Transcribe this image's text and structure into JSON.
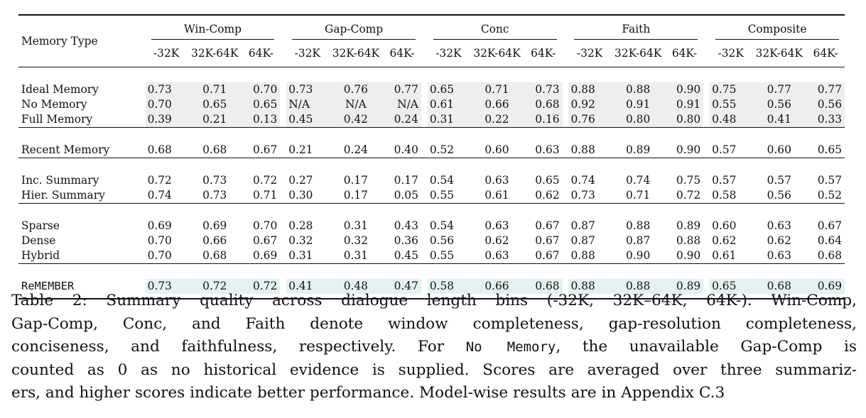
{
  "table": {
    "row_header": "Memory Type",
    "groups": [
      "Win-Comp",
      "Gap-Comp",
      "Conc",
      "Faith",
      "Composite"
    ],
    "bins": [
      "-32K",
      "32K-64K",
      "64K-"
    ],
    "blocks": [
      [
        {
          "name": "Ideal Memory",
          "values": [
            "0.73",
            "0.71",
            "0.70",
            "0.73",
            "0.76",
            "0.77",
            "0.65",
            "0.71",
            "0.73",
            "0.88",
            "0.88",
            "0.90",
            "0.75",
            "0.77",
            "0.77"
          ]
        },
        {
          "name": "No Memory",
          "values": [
            "0.70",
            "0.65",
            "0.65",
            "N/A",
            "N/A",
            "N/A",
            "0.61",
            "0.66",
            "0.68",
            "0.92",
            "0.91",
            "0.91",
            "0.55",
            "0.56",
            "0.56"
          ]
        },
        {
          "name": "Full Memory",
          "values": [
            "0.39",
            "0.21",
            "0.13",
            "0.45",
            "0.42",
            "0.24",
            "0.31",
            "0.22",
            "0.16",
            "0.76",
            "0.80",
            "0.80",
            "0.48",
            "0.41",
            "0.33"
          ]
        }
      ],
      [
        {
          "name": "Recent Memory",
          "values": [
            "0.68",
            "0.68",
            "0.67",
            "0.21",
            "0.24",
            "0.40",
            "0.52",
            "0.60",
            "0.63",
            "0.88",
            "0.89",
            "0.90",
            "0.57",
            "0.60",
            "0.65"
          ]
        }
      ],
      [
        {
          "name": "Inc. Summary",
          "values": [
            "0.72",
            "0.73",
            "0.72",
            "0.27",
            "0.17",
            "0.17",
            "0.54",
            "0.63",
            "0.65",
            "0.74",
            "0.74",
            "0.75",
            "0.57",
            "0.57",
            "0.57"
          ]
        },
        {
          "name": "Hier. Summary",
          "values": [
            "0.74",
            "0.73",
            "0.71",
            "0.30",
            "0.17",
            "0.05",
            "0.55",
            "0.61",
            "0.62",
            "0.73",
            "0.71",
            "0.72",
            "0.58",
            "0.56",
            "0.52"
          ]
        }
      ],
      [
        {
          "name": "Sparse",
          "values": [
            "0.69",
            "0.69",
            "0.70",
            "0.28",
            "0.31",
            "0.43",
            "0.54",
            "0.63",
            "0.67",
            "0.87",
            "0.88",
            "0.89",
            "0.60",
            "0.63",
            "0.67"
          ]
        },
        {
          "name": "Dense",
          "values": [
            "0.70",
            "0.66",
            "0.67",
            "0.32",
            "0.32",
            "0.36",
            "0.56",
            "0.62",
            "0.67",
            "0.87",
            "0.87",
            "0.88",
            "0.62",
            "0.62",
            "0.64"
          ]
        },
        {
          "name": "Hybrid",
          "values": [
            "0.70",
            "0.68",
            "0.69",
            "0.31",
            "0.31",
            "0.45",
            "0.55",
            "0.63",
            "0.67",
            "0.88",
            "0.90",
            "0.90",
            "0.61",
            "0.63",
            "0.68"
          ]
        }
      ],
      [
        {
          "name": "ReMEMBER",
          "values": [
            "0.73",
            "0.72",
            "0.72",
            "0.41",
            "0.48",
            "0.47",
            "0.58",
            "0.66",
            "0.68",
            "0.88",
            "0.88",
            "0.89",
            "0.65",
            "0.68",
            "0.69"
          ]
        }
      ]
    ]
  },
  "caption": {
    "lines": [
      "Table 2: Summary quality across dialogue length bins (-32K, 32K–64K, 64K-). Win-Comp,",
      "Gap-Comp, Conc, and Faith denote window completeness, gap-resolution completeness,",
      "conciseness, and faithfulness, respectively. For ",
      " the unavailable Gap-Comp is",
      "counted as 0 as no historical evidence is supplied. Scores are averaged over three summariz-",
      "ers, and higher scores indicate better performance. Model-wise results are in Appendix C.3"
    ],
    "code_term": "No Memory",
    "code_suffix": ","
  }
}
